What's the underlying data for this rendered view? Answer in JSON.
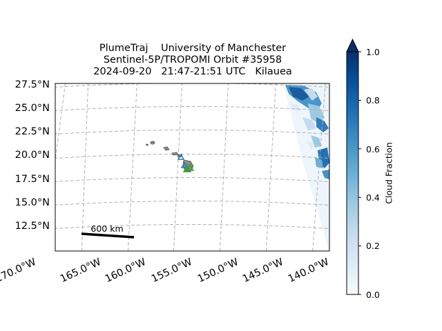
{
  "title": {
    "line1": "PlumeTraj    University of Manchester",
    "line2": "Sentinel-5P/TROPOMI Orbit #35958",
    "line3": "2024-09-20   21:47-21:51 UTC   Kilauea"
  },
  "lat_labels": [
    "27.5°N",
    "25.0°N",
    "22.5°N",
    "20.0°N",
    "17.5°N",
    "15.0°N",
    "12.5°N"
  ],
  "lon_labels": [
    "170.0°W",
    "165.0°W",
    "160.0°W",
    "155.0°W",
    "150.0°W",
    "145.0°W",
    "140.0°W"
  ],
  "scale_bar": {
    "label": "600 km"
  },
  "colorbar": {
    "label": "Cloud Fraction",
    "colormap": "Blues",
    "ticks": [
      "0.0",
      "0.2",
      "0.4",
      "0.6",
      "0.8",
      "1.0"
    ],
    "range": [
      0.0,
      1.0
    ],
    "extend": "max"
  },
  "markers": {
    "triangle_colors": [
      "#1f77b4",
      "#2ca02c"
    ]
  },
  "map": {
    "projection": "conic",
    "extent": {
      "lon": [
        -170,
        -140
      ],
      "lat": [
        10,
        27.5
      ]
    },
    "gridline_color": "#b0b0b0",
    "land_color": "#808080"
  }
}
